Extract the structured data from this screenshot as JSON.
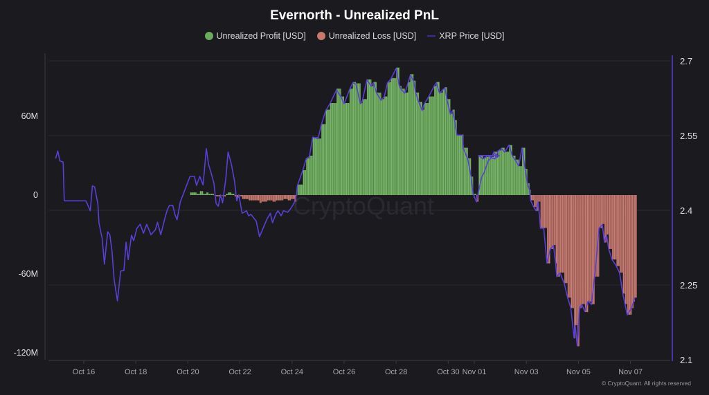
{
  "chart_data": {
    "type": "bar+line",
    "title": "Evernorth - Unrealized PnL",
    "legend": [
      {
        "label": "Unrealized Profit [USD]",
        "color": "#6aab5c"
      },
      {
        "label": "Unrealized Loss [USD]",
        "color": "#c9786e"
      },
      {
        "label": "XRP Price [USD]",
        "color": "#5a3fd8"
      }
    ],
    "legend_placement": "top",
    "grid": true,
    "x_ticks": [
      "Oct 16",
      "Oct 18",
      "Oct 20",
      "Oct 22",
      "Oct 24",
      "Oct 26",
      "Oct 28",
      "Oct 30",
      "Nov 01",
      "Nov 03",
      "Nov 05",
      "Nov 07"
    ],
    "y_left": {
      "ticks": [
        "60M",
        "0",
        "-60M",
        "-120M"
      ],
      "range_musd": [
        -120,
        100
      ]
    },
    "y_right": {
      "ticks": [
        "2.7",
        "2.55",
        "2.4",
        "2.25",
        "2.1"
      ],
      "range": [
        2.1,
        2.7
      ]
    },
    "price": [
      [
        "10-14 22:00",
        2.504
      ],
      [
        "10-15 00:00",
        2.519
      ],
      [
        "10-15 02:00",
        2.499
      ],
      [
        "10-15 05:00",
        2.497
      ],
      [
        "10-15 06:00",
        2.419
      ],
      [
        "10-16 02:00",
        2.419
      ],
      [
        "10-16 06:00",
        2.399
      ],
      [
        "10-16 08:00",
        2.449
      ],
      [
        "10-16 10:00",
        2.447
      ],
      [
        "10-16 13:00",
        2.412
      ],
      [
        "10-16 14:00",
        2.375
      ],
      [
        "10-16 17:00",
        2.343
      ],
      [
        "10-16 19:00",
        2.292
      ],
      [
        "10-16 22:00",
        2.357
      ],
      [
        "10-17 00:00",
        2.351
      ],
      [
        "10-17 02:00",
        2.319
      ],
      [
        "10-17 04:00",
        2.26
      ],
      [
        "10-17 07:00",
        2.218
      ],
      [
        "10-17 10:00",
        2.278
      ],
      [
        "10-17 13:00",
        2.279
      ],
      [
        "10-17 15:00",
        2.336
      ],
      [
        "10-17 17:00",
        2.301
      ],
      [
        "10-17 20:00",
        2.35
      ],
      [
        "10-17 22:00",
        2.339
      ],
      [
        "10-18 01:00",
        2.364
      ],
      [
        "10-18 04:00",
        2.372
      ],
      [
        "10-18 07:00",
        2.354
      ],
      [
        "10-18 10:00",
        2.372
      ],
      [
        "10-18 14:00",
        2.351
      ],
      [
        "10-18 18:00",
        2.361
      ],
      [
        "10-18 20:00",
        2.376
      ],
      [
        "10-18 23:00",
        2.351
      ],
      [
        "10-19 03:00",
        2.386
      ],
      [
        "10-19 05:00",
        2.401
      ],
      [
        "10-19 07:00",
        2.41
      ],
      [
        "10-19 10:00",
        2.41
      ],
      [
        "10-19 12:00",
        2.392
      ],
      [
        "10-19 14:00",
        2.381
      ],
      [
        "10-19 17:00",
        2.417
      ],
      [
        "10-20 02:00",
        2.468
      ],
      [
        "10-20 06:00",
        2.468
      ],
      [
        "10-20 08:00",
        2.45
      ],
      [
        "10-20 11:00",
        2.468
      ],
      [
        "10-20 14:00",
        2.451
      ],
      [
        "10-20 17:00",
        2.524
      ],
      [
        "10-20 19:00",
        2.492
      ],
      [
        "10-20 21:00",
        2.478
      ],
      [
        "10-21 00:00",
        2.454
      ],
      [
        "10-21 02:00",
        2.414
      ],
      [
        "10-21 04:00",
        2.408
      ],
      [
        "10-21 06:00",
        2.431
      ],
      [
        "10-21 08:00",
        2.415
      ],
      [
        "10-21 11:00",
        2.464
      ],
      [
        "10-21 13:00",
        2.517
      ],
      [
        "10-21 16:00",
        2.493
      ],
      [
        "10-21 19:00",
        2.458
      ],
      [
        "10-21 21:00",
        2.419
      ],
      [
        "10-21 23:00",
        2.431
      ],
      [
        "10-22 02:00",
        2.394
      ],
      [
        "10-22 06:00",
        2.399
      ],
      [
        "10-22 08:00",
        2.389
      ],
      [
        "10-22 10:00",
        2.392
      ],
      [
        "10-22 15:00",
        2.378
      ],
      [
        "10-22 18:00",
        2.347
      ],
      [
        "10-22 20:00",
        2.357
      ],
      [
        "10-23 01:00",
        2.383
      ],
      [
        "10-23 04:00",
        2.394
      ],
      [
        "10-23 06:00",
        2.375
      ],
      [
        "10-23 09:00",
        2.392
      ],
      [
        "10-23 11:00",
        2.399
      ],
      [
        "10-23 14:00",
        2.389
      ],
      [
        "10-23 16:00",
        2.399
      ],
      [
        "10-23 20:00",
        2.396
      ],
      [
        "10-23 23:00",
        2.404
      ],
      [
        "10-24 02:00",
        2.415
      ],
      [
        "10-24 04:00",
        2.431
      ],
      [
        "10-24 05:00",
        2.45
      ],
      [
        "10-24 10:00",
        2.481
      ],
      [
        "10-24 13:00",
        2.503
      ],
      [
        "10-24 16:00",
        2.508
      ],
      [
        "10-24 19:00",
        2.547
      ],
      [
        "10-25 00:00",
        2.544
      ],
      [
        "10-25 03:00",
        2.572
      ],
      [
        "10-25 07:00",
        2.6
      ],
      [
        "10-25 11:00",
        2.614
      ],
      [
        "10-25 17:00",
        2.642
      ],
      [
        "10-25 21:00",
        2.628
      ],
      [
        "10-26 00:00",
        2.614
      ],
      [
        "10-26 05:00",
        2.642
      ],
      [
        "10-26 08:00",
        2.656
      ],
      [
        "10-26 11:00",
        2.653
      ],
      [
        "10-26 15:00",
        2.614
      ],
      [
        "10-26 17:00",
        2.621
      ],
      [
        "10-26 21:00",
        2.662
      ],
      [
        "10-27 01:00",
        2.649
      ],
      [
        "10-27 03:00",
        2.656
      ],
      [
        "10-27 06:00",
        2.635
      ],
      [
        "10-27 10:00",
        2.621
      ],
      [
        "10-27 13:00",
        2.628
      ],
      [
        "10-27 16:00",
        2.656
      ],
      [
        "10-27 19:00",
        2.663
      ],
      [
        "10-28 00:00",
        2.685
      ],
      [
        "10-28 03:00",
        2.649
      ],
      [
        "10-28 05:00",
        2.642
      ],
      [
        "10-28 08:00",
        2.635
      ],
      [
        "10-28 11:00",
        2.656
      ],
      [
        "10-28 13:00",
        2.671
      ],
      [
        "10-28 16:00",
        2.66
      ],
      [
        "10-28 18:00",
        2.635
      ],
      [
        "10-28 21:00",
        2.617
      ],
      [
        "10-29 00:00",
        2.6
      ],
      [
        "10-29 02:00",
        2.614
      ],
      [
        "10-29 06:00",
        2.628
      ],
      [
        "10-29 11:00",
        2.649
      ],
      [
        "10-29 13:00",
        2.656
      ],
      [
        "10-29 16:00",
        2.635
      ],
      [
        "10-29 19:00",
        2.642
      ],
      [
        "10-29 21:00",
        2.646
      ],
      [
        "10-29 23:00",
        2.621
      ],
      [
        "10-30 02:00",
        2.593
      ],
      [
        "10-30 04:00",
        2.6
      ],
      [
        "10-30 06:00",
        2.579
      ],
      [
        "10-30 08:00",
        2.551
      ],
      [
        "10-30 13:00",
        2.551
      ],
      [
        "10-30 14:00",
        2.524
      ],
      [
        "10-30 18:00",
        2.503
      ],
      [
        "10-30 21:00",
        2.468
      ],
      [
        "10-30 23:00",
        2.433
      ],
      [
        "10-31 02:00",
        2.417
      ],
      [
        "10-31 04:00",
        2.44
      ],
      [
        "10-31 07:00",
        2.468
      ],
      [
        "10-31 09:00",
        2.475
      ],
      [
        "10-31 13:00",
        2.5
      ],
      [
        "10-31 16:00",
        2.506
      ],
      [
        "10-31 18:00",
        2.517
      ],
      [
        "10-31 21:00",
        2.506
      ],
      [
        "10-31 23:00",
        2.51
      ],
      [
        "11-01 04:00",
        2.51
      ],
      [
        "11-01 08:00",
        2.503
      ],
      [
        "11-01 10:00",
        2.506
      ],
      [
        "11-01 13:00",
        2.51
      ],
      [
        "11-01 15:00",
        2.506
      ],
      [
        "11-01 19:00",
        2.503
      ],
      [
        "11-01 22:00",
        2.519
      ],
      [
        "11-02 01:00",
        2.524
      ],
      [
        "11-02 04:00",
        2.517
      ],
      [
        "11-02 08:00",
        2.531
      ],
      [
        "11-02 11:00",
        2.51
      ],
      [
        "11-02 14:00",
        2.5
      ],
      [
        "11-02 17:00",
        2.489
      ],
      [
        "11-02 20:00",
        2.525
      ],
      [
        "11-02 23:00",
        2.482
      ],
      [
        "11-03 01:00",
        2.454
      ],
      [
        "11-03 03:00",
        2.44
      ],
      [
        "11-03 04:00",
        2.419
      ],
      [
        "11-03 07:00",
        2.406
      ],
      [
        "11-03 09:00",
        2.399
      ],
      [
        "11-03 11:00",
        2.417
      ],
      [
        "11-03 13:00",
        2.364
      ],
      [
        "11-03 16:00",
        2.364
      ],
      [
        "11-03 19:00",
        2.294
      ],
      [
        "11-03 22:00",
        2.322
      ],
      [
        "11-04 01:00",
        2.329
      ],
      [
        "11-04 03:00",
        2.294
      ],
      [
        "11-04 04:00",
        2.267
      ],
      [
        "11-04 07:00",
        2.274
      ],
      [
        "11-04 11:00",
        2.253
      ],
      [
        "11-04 14:00",
        2.225
      ],
      [
        "11-04 17:00",
        2.204
      ],
      [
        "11-04 20:00",
        2.144
      ],
      [
        "11-04 21:00",
        2.169
      ],
      [
        "11-04 23:00",
        2.128
      ],
      [
        "11-05 01:00",
        2.204
      ],
      [
        "11-05 03:00",
        2.211
      ],
      [
        "11-05 06:00",
        2.197
      ],
      [
        "11-05 09:00",
        2.218
      ],
      [
        "11-05 12:00",
        2.211
      ],
      [
        "11-05 15:00",
        2.267
      ],
      [
        "11-05 19:00",
        2.364
      ],
      [
        "11-05 22:00",
        2.371
      ],
      [
        "11-06 00:00",
        2.336
      ],
      [
        "11-06 02:00",
        2.35
      ],
      [
        "11-06 04:00",
        2.322
      ],
      [
        "11-06 07:00",
        2.301
      ],
      [
        "11-06 11:00",
        2.288
      ],
      [
        "11-06 14:00",
        2.274
      ],
      [
        "11-06 17:00",
        2.232
      ],
      [
        "11-06 19:00",
        2.211
      ],
      [
        "11-06 21:00",
        2.19
      ],
      [
        "11-07 01:00",
        2.204
      ],
      [
        "11-07 03:00",
        2.218
      ],
      [
        "11-07 04:00",
        2.225
      ]
    ],
    "pnl_musd": [
      [
        "10-20 02:00",
        2
      ],
      [
        "10-20 06:00",
        2
      ],
      [
        "10-20 08:00",
        1
      ],
      [
        "10-20 11:00",
        3
      ],
      [
        "10-20 14:00",
        1
      ],
      [
        "10-20 17:00",
        2
      ],
      [
        "10-20 19:00",
        1
      ],
      [
        "10-20 21:00",
        1
      ],
      [
        "10-21 00:00",
        0
      ],
      [
        "10-21 02:00",
        -1
      ],
      [
        "10-21 04:00",
        -1
      ],
      [
        "10-21 06:00",
        0
      ],
      [
        "10-21 08:00",
        -1
      ],
      [
        "10-21 11:00",
        1
      ],
      [
        "10-21 13:00",
        2
      ],
      [
        "10-21 16:00",
        1
      ],
      [
        "10-21 19:00",
        -1
      ],
      [
        "10-21 21:00",
        -2
      ],
      [
        "10-21 23:00",
        -1
      ],
      [
        "10-22 02:00",
        -3
      ],
      [
        "10-22 06:00",
        -3
      ],
      [
        "10-22 08:00",
        -4
      ],
      [
        "10-22 10:00",
        -4
      ],
      [
        "10-22 15:00",
        -4
      ],
      [
        "10-22 18:00",
        -6
      ],
      [
        "10-22 20:00",
        -5
      ],
      [
        "10-23 01:00",
        -4
      ],
      [
        "10-23 04:00",
        -4
      ],
      [
        "10-23 06:00",
        -5
      ],
      [
        "10-23 09:00",
        -4
      ],
      [
        "10-23 11:00",
        -4
      ],
      [
        "10-23 14:00",
        -4
      ],
      [
        "10-23 16:00",
        -3
      ],
      [
        "10-23 20:00",
        -4
      ],
      [
        "10-23 23:00",
        -3
      ],
      [
        "10-24 02:00",
        -5
      ],
      [
        "10-24 04:00",
        0
      ],
      [
        "10-24 05:00",
        8
      ],
      [
        "10-24 10:00",
        19
      ],
      [
        "10-24 13:00",
        28
      ],
      [
        "10-24 16:00",
        30
      ],
      [
        "10-24 19:00",
        44
      ],
      [
        "10-25 00:00",
        43
      ],
      [
        "10-25 03:00",
        54
      ],
      [
        "10-25 07:00",
        65
      ],
      [
        "10-25 11:00",
        70
      ],
      [
        "10-25 17:00",
        81
      ],
      [
        "10-25 21:00",
        75
      ],
      [
        "10-26 00:00",
        70
      ],
      [
        "10-26 05:00",
        81
      ],
      [
        "10-26 08:00",
        86
      ],
      [
        "10-26 11:00",
        85
      ],
      [
        "10-26 15:00",
        70
      ],
      [
        "10-26 17:00",
        73
      ],
      [
        "10-26 21:00",
        88
      ],
      [
        "10-27 01:00",
        83
      ],
      [
        "10-27 03:00",
        86
      ],
      [
        "10-27 06:00",
        78
      ],
      [
        "10-27 10:00",
        73
      ],
      [
        "10-27 13:00",
        75
      ],
      [
        "10-27 16:00",
        86
      ],
      [
        "10-27 19:00",
        89
      ],
      [
        "10-28 00:00",
        97
      ],
      [
        "10-28 03:00",
        83
      ],
      [
        "10-28 05:00",
        81
      ],
      [
        "10-28 08:00",
        78
      ],
      [
        "10-28 11:00",
        86
      ],
      [
        "10-28 13:00",
        92
      ],
      [
        "10-28 16:00",
        87
      ],
      [
        "10-28 18:00",
        78
      ],
      [
        "10-28 21:00",
        71
      ],
      [
        "10-29 00:00",
        65
      ],
      [
        "10-29 02:00",
        70
      ],
      [
        "10-29 06:00",
        75
      ],
      [
        "10-29 11:00",
        83
      ],
      [
        "10-29 13:00",
        86
      ],
      [
        "10-29 16:00",
        78
      ],
      [
        "10-29 19:00",
        81
      ],
      [
        "10-29 21:00",
        82
      ],
      [
        "10-29 23:00",
        73
      ],
      [
        "10-30 02:00",
        62
      ],
      [
        "10-30 04:00",
        65
      ],
      [
        "10-30 06:00",
        57
      ],
      [
        "10-30 08:00",
        46
      ],
      [
        "10-30 13:00",
        46
      ],
      [
        "10-30 14:00",
        36
      ],
      [
        "10-30 18:00",
        28
      ],
      [
        "10-30 21:00",
        14
      ],
      [
        "10-30 23:00",
        1
      ],
      [
        "10-31 02:00",
        -5
      ],
      [
        "10-31 04:00",
        4
      ],
      [
        "10-31 07:00",
        14
      ],
      [
        "10-31 09:00",
        17
      ],
      [
        "10-31 13:00",
        27
      ],
      [
        "10-31 16:00",
        29
      ],
      [
        "10-31 18:00",
        33
      ],
      [
        "10-31 21:00",
        29
      ],
      [
        "10-31 23:00",
        30
      ],
      [
        "11-01 04:00",
        30
      ],
      [
        "11-01 08:00",
        28
      ],
      [
        "11-01 10:00",
        29
      ],
      [
        "11-01 13:00",
        30
      ],
      [
        "11-01 15:00",
        29
      ],
      [
        "11-01 19:00",
        28
      ],
      [
        "11-01 22:00",
        34
      ],
      [
        "11-02 01:00",
        36
      ],
      [
        "11-02 04:00",
        33
      ],
      [
        "11-02 08:00",
        38
      ],
      [
        "11-02 11:00",
        30
      ],
      [
        "11-02 14:00",
        27
      ],
      [
        "11-02 17:00",
        22
      ],
      [
        "11-02 20:00",
        36
      ],
      [
        "11-02 23:00",
        20
      ],
      [
        "11-03 01:00",
        9
      ],
      [
        "11-03 03:00",
        4
      ],
      [
        "11-03 04:00",
        -4
      ],
      [
        "11-03 07:00",
        -9
      ],
      [
        "11-03 09:00",
        -12
      ],
      [
        "11-03 11:00",
        -5
      ],
      [
        "11-03 13:00",
        -25
      ],
      [
        "11-03 16:00",
        -25
      ],
      [
        "11-03 19:00",
        -52
      ],
      [
        "11-03 22:00",
        -41
      ],
      [
        "11-04 01:00",
        -38
      ],
      [
        "11-04 03:00",
        -52
      ],
      [
        "11-04 04:00",
        -62
      ],
      [
        "11-04 07:00",
        -59
      ],
      [
        "11-04 11:00",
        -67
      ],
      [
        "11-04 14:00",
        -78
      ],
      [
        "11-04 17:00",
        -86
      ],
      [
        "11-04 20:00",
        -109
      ],
      [
        "11-04 21:00",
        -99
      ],
      [
        "11-04 23:00",
        -115
      ],
      [
        "11-05 01:00",
        -86
      ],
      [
        "11-05 03:00",
        -83
      ],
      [
        "11-05 06:00",
        -89
      ],
      [
        "11-05 09:00",
        -81
      ],
      [
        "11-05 12:00",
        -83
      ],
      [
        "11-05 15:00",
        -62
      ],
      [
        "11-05 19:00",
        -25
      ],
      [
        "11-05 22:00",
        -22
      ],
      [
        "11-06 00:00",
        -36
      ],
      [
        "11-06 02:00",
        -30
      ],
      [
        "11-06 04:00",
        -41
      ],
      [
        "11-06 07:00",
        -49
      ],
      [
        "11-06 11:00",
        -54
      ],
      [
        "11-06 14:00",
        -59
      ],
      [
        "11-06 17:00",
        -75
      ],
      [
        "11-06 19:00",
        -83
      ],
      [
        "11-06 21:00",
        -91
      ],
      [
        "11-07 01:00",
        -86
      ],
      [
        "11-07 03:00",
        -81
      ],
      [
        "11-07 04:00",
        -78
      ]
    ]
  },
  "watermark": "CryptoQuant",
  "copyright": "© CryptoQuant. All rights reserved"
}
